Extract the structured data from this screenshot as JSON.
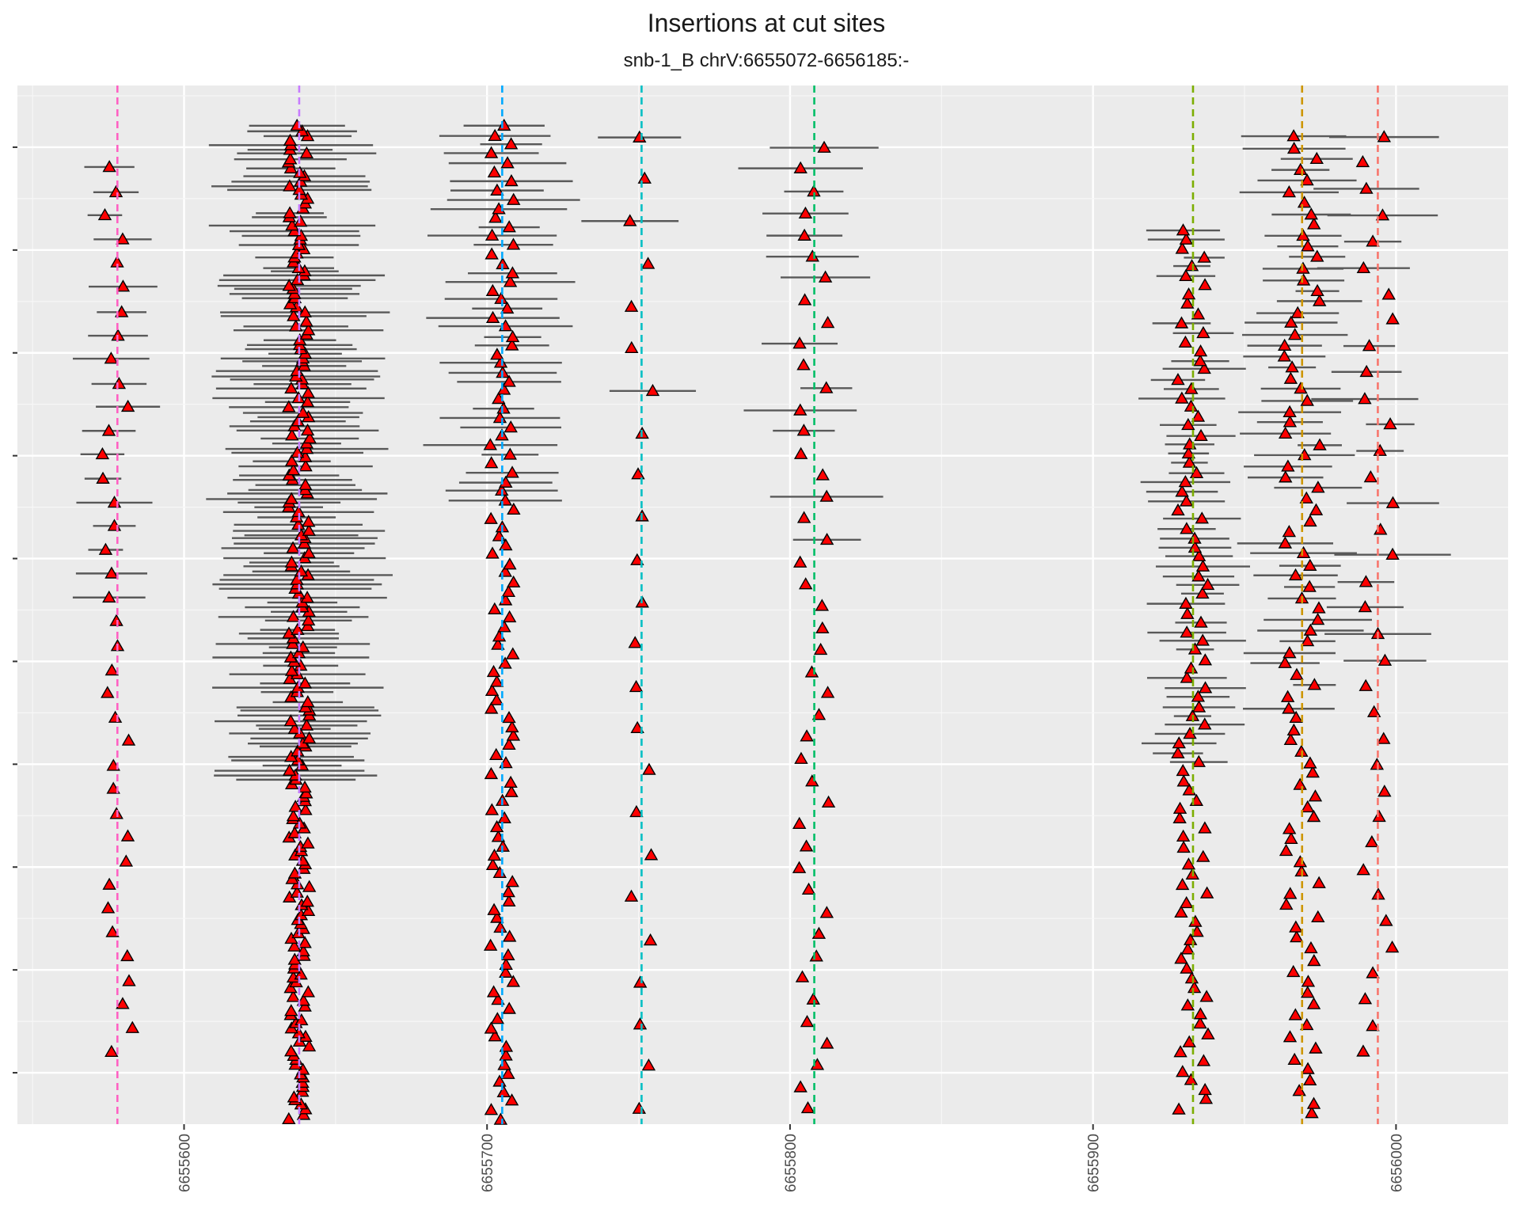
{
  "chart_data": {
    "type": "scatter",
    "title": "Insertions at cut sites",
    "subtitle": "snb-1_B chrV:6655072-6656185:-",
    "xlabel": "",
    "ylabel": "",
    "xlim": [
      6655545,
      6656037
    ],
    "ylim": [
      0.5,
      10.6
    ],
    "x_ticks": [
      6655600,
      6655700,
      6655800,
      6655900,
      6656000
    ],
    "x_tick_labels": [
      "6655600",
      "6655700",
      "6655800",
      "6655900",
      "6656000"
    ],
    "y_tick_labels_shown": false,
    "grid": true,
    "legend": "none",
    "cut_sites": [
      {
        "x": 6655578,
        "color": "#ff61c3"
      },
      {
        "x": 6655638,
        "color": "#c77cff"
      },
      {
        "x": 6655705,
        "color": "#00a9ff"
      },
      {
        "x": 6655751,
        "color": "#00bfc4"
      },
      {
        "x": 6655808,
        "color": "#00be67"
      },
      {
        "x": 6655933,
        "color": "#7cae00"
      },
      {
        "x": 6655969,
        "color": "#cd9600"
      },
      {
        "x": 6655994,
        "color": "#f8766d"
      }
    ],
    "clusters": [
      {
        "cut_site": 6655578,
        "y_start": 1.2,
        "y_end": 9.8,
        "count": 38,
        "spread": 5,
        "error_bar": 10,
        "error_bar_until": 5.5
      },
      {
        "cut_site": 6655638,
        "y_start": 0.55,
        "y_end": 10.2,
        "count": 220,
        "spread": 3.5,
        "error_bar": 22,
        "error_bar_until": 3.8
      },
      {
        "cut_site": 6655705,
        "y_start": 0.55,
        "y_end": 10.2,
        "count": 110,
        "spread": 4,
        "error_bar": 18,
        "error_bar_until": 6.5
      },
      {
        "cut_site": 6655751,
        "y_start": 0.65,
        "y_end": 10.1,
        "count": 24,
        "spread": 4,
        "error_bar": 13,
        "error_bar_until": 7.5
      },
      {
        "cut_site": 6655808,
        "y_start": 0.65,
        "y_end": 10.0,
        "count": 45,
        "spread": 5,
        "error_bar": 16,
        "error_bar_until": 6.0
      },
      {
        "cut_site": 6655933,
        "y_start": 0.65,
        "y_end": 9.2,
        "count": 95,
        "spread": 5,
        "error_bar": 12,
        "error_bar_until": 4.0
      },
      {
        "cut_site": 6655969,
        "y_start": 0.6,
        "y_end": 10.1,
        "count": 90,
        "spread": 6,
        "error_bar": 14,
        "error_bar_until": 4.5
      },
      {
        "cut_site": 6655994,
        "y_start": 1.2,
        "y_end": 10.1,
        "count": 36,
        "spread": 5,
        "error_bar": 15,
        "error_bar_until": 5.0
      }
    ],
    "marker": {
      "shape": "triangle",
      "fill": "#ff0000",
      "stroke": "#000000"
    },
    "error_bar_color": "#595959"
  }
}
